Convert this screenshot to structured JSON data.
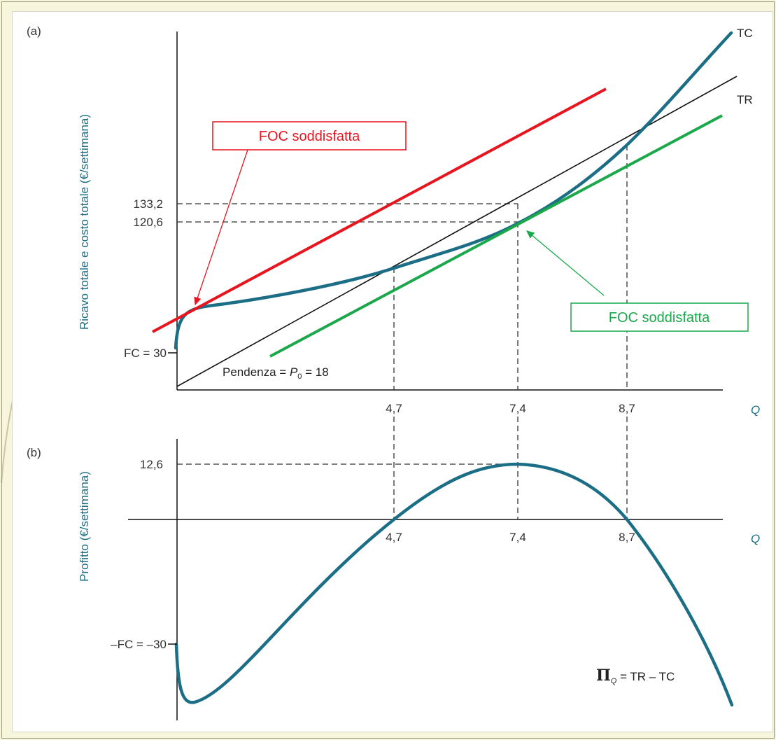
{
  "colors": {
    "curve": "#1b6e86",
    "axis": "#111111",
    "foc_red": "#e8141e",
    "foc_green": "#1aa84a",
    "label_teal": "#1b6e86",
    "background": "#f7f5dc"
  },
  "panel_a": {
    "label": "(a)",
    "y_axis_label": "Ricavo totale e costo totale (€/settimana)",
    "x_axis_label": "Q",
    "curve_labels": {
      "tc": "TC",
      "tr": "TR"
    },
    "y_ticks": {
      "fc": "FC = 30",
      "v120": "120,6",
      "v133": "133,2"
    },
    "x_ticks": {
      "q1": "4,7",
      "q2": "7,4",
      "q3": "8,7"
    },
    "slope_label": {
      "prefix": "Pendenza = ",
      "symbol": "P",
      "subscript": "0",
      "suffix": " = 18"
    },
    "foc_red_label": "FOC soddisfatta",
    "foc_green_label": "FOC soddisfatta"
  },
  "panel_b": {
    "label": "(b)",
    "y_axis_label": "Profitto (€/settimana)",
    "x_axis_label": "Q",
    "y_ticks": {
      "max": "12,6",
      "min": "–FC = –30"
    },
    "x_ticks": {
      "q1": "4,7",
      "q2": "7,4",
      "q3": "8,7"
    },
    "profit_label": {
      "symbol": "Π",
      "subscript": "Q",
      "rest": " = TR – TC"
    }
  }
}
